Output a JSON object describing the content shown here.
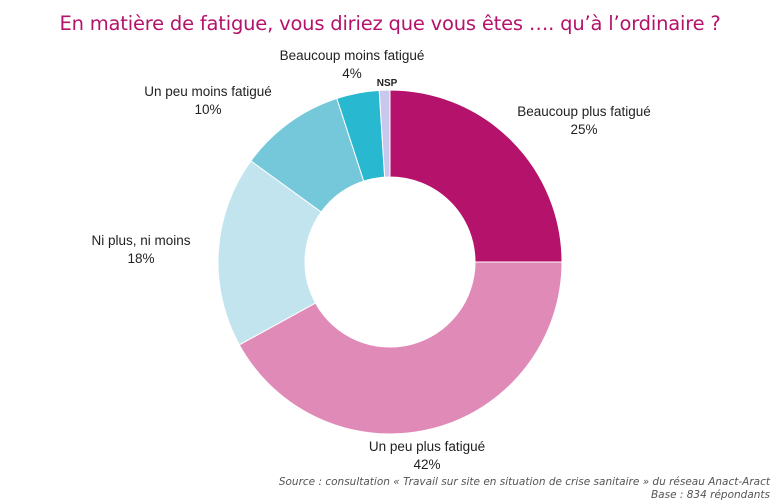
{
  "chart_data": {
    "type": "pie",
    "variant": "donut",
    "title": "En matière de fatigue, vous diriez que vous êtes …. qu’à l’ordinaire ?",
    "slices": [
      {
        "label": "Beaucoup plus fatigué",
        "value": 25,
        "value_label": "25%",
        "color": "#b5136b"
      },
      {
        "label": "Un peu plus fatigué",
        "value": 42,
        "value_label": "42%",
        "color": "#e08bb7"
      },
      {
        "label": "Ni plus, ni moins",
        "value": 18,
        "value_label": "18%",
        "color": "#c2e4ee"
      },
      {
        "label": "Un peu moins fatigué",
        "value": 10,
        "value_label": "10%",
        "color": "#74c8da"
      },
      {
        "label": "Beaucoup moins fatigué",
        "value": 4,
        "value_label": "4%",
        "color": "#28b8d0"
      },
      {
        "label": "NSP",
        "value": 1,
        "value_label": "",
        "color": "#c8c8ee"
      }
    ],
    "start_angle": "top",
    "direction": "clockwise"
  },
  "source": {
    "line1": "Source : consultation « Travail sur site en situation de crise sanitaire » du réseau Anact-Aract",
    "line2": "Base : 834 répondants"
  }
}
